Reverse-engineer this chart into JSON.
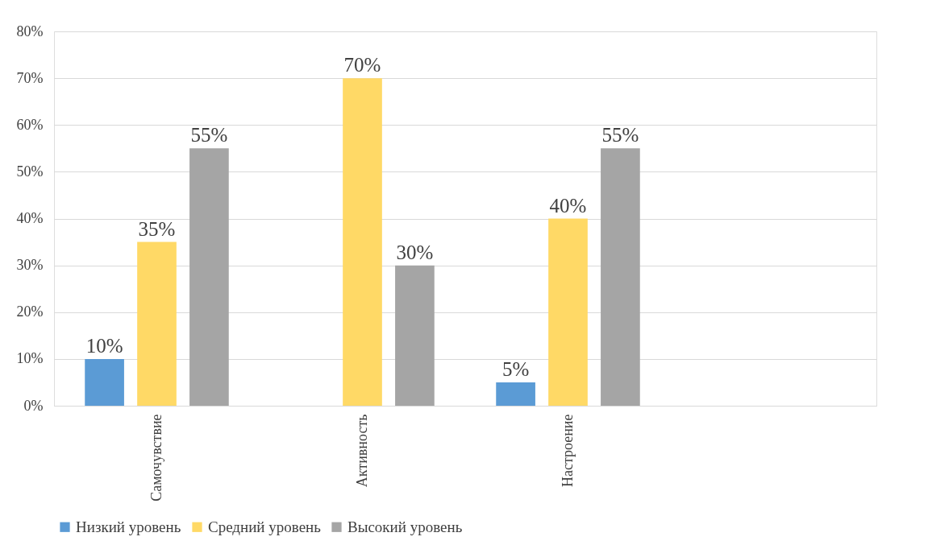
{
  "chart_data": {
    "type": "bar",
    "categories": [
      "Самочувствие",
      "Активность",
      "Настроение",
      null
    ],
    "series": [
      {
        "name": "Низкий уровень",
        "color": "#5b9bd5",
        "values": [
          10,
          null,
          5,
          null
        ],
        "value_labels": [
          "10%",
          null,
          "5%",
          null
        ]
      },
      {
        "name": "Средний уровень",
        "color": "#ffd966",
        "values": [
          35,
          70,
          40,
          null
        ],
        "value_labels": [
          "35%",
          "70%",
          "40%",
          null
        ]
      },
      {
        "name": "Высокий уровень",
        "color": "#a5a5a5",
        "values": [
          55,
          30,
          55,
          null
        ],
        "value_labels": [
          "55%",
          "30%",
          "55%",
          null
        ]
      }
    ],
    "ylim": [
      0,
      80
    ],
    "yticks": [
      {
        "value": 0,
        "label": "0%"
      },
      {
        "value": 10,
        "label": "10%"
      },
      {
        "value": 20,
        "label": "20%"
      },
      {
        "value": 30,
        "label": "30%"
      },
      {
        "value": 40,
        "label": "40%"
      },
      {
        "value": 50,
        "label": "50%"
      },
      {
        "value": 60,
        "label": "60%"
      },
      {
        "value": 70,
        "label": "70%"
      },
      {
        "value": 80,
        "label": "80%"
      }
    ],
    "grid": "y",
    "legend": "bottom"
  }
}
